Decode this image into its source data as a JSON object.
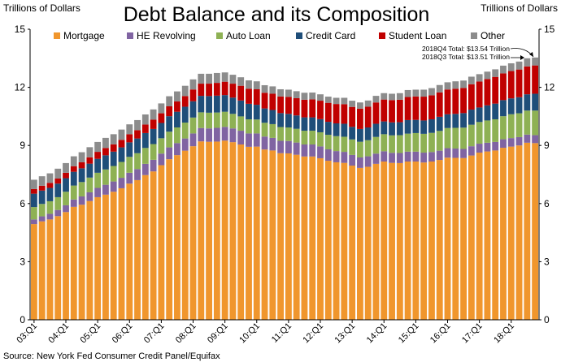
{
  "chart_data": {
    "type": "bar",
    "stacked": true,
    "title": "Debt Balance and its Composition",
    "ylabel_left": "Trillions of Dollars",
    "ylabel_right": "Trillions of Dollars",
    "ylim": [
      0,
      15
    ],
    "yticks": [
      0,
      3,
      6,
      9,
      12,
      15
    ],
    "grid": false,
    "legend_position": "top",
    "xtick_labels": [
      "03:Q1",
      "04:Q1",
      "05:Q1",
      "06:Q1",
      "07:Q1",
      "08:Q1",
      "09:Q1",
      "10:Q1",
      "11:Q1",
      "12:Q1",
      "13:Q1",
      "14:Q1",
      "15:Q1",
      "16:Q1",
      "17:Q1",
      "18:Q1"
    ],
    "categories": [
      "03:Q1",
      "03:Q2",
      "03:Q3",
      "03:Q4",
      "04:Q1",
      "04:Q2",
      "04:Q3",
      "04:Q4",
      "05:Q1",
      "05:Q2",
      "05:Q3",
      "05:Q4",
      "06:Q1",
      "06:Q2",
      "06:Q3",
      "06:Q4",
      "07:Q1",
      "07:Q2",
      "07:Q3",
      "07:Q4",
      "08:Q1",
      "08:Q2",
      "08:Q3",
      "08:Q4",
      "09:Q1",
      "09:Q2",
      "09:Q3",
      "09:Q4",
      "10:Q1",
      "10:Q2",
      "10:Q3",
      "10:Q4",
      "11:Q1",
      "11:Q2",
      "11:Q3",
      "11:Q4",
      "12:Q1",
      "12:Q2",
      "12:Q3",
      "12:Q4",
      "13:Q1",
      "13:Q2",
      "13:Q3",
      "13:Q4",
      "14:Q1",
      "14:Q2",
      "14:Q3",
      "14:Q4",
      "15:Q1",
      "15:Q2",
      "15:Q3",
      "15:Q4",
      "16:Q1",
      "16:Q2",
      "16:Q3",
      "16:Q4",
      "17:Q1",
      "17:Q2",
      "17:Q3",
      "17:Q4",
      "18:Q1",
      "18:Q2",
      "18:Q3",
      "18:Q4"
    ],
    "series": [
      {
        "name": "Mortgage",
        "color": "#F0962D",
        "values": [
          4.94,
          5.08,
          5.18,
          5.35,
          5.56,
          5.83,
          5.94,
          6.13,
          6.33,
          6.46,
          6.61,
          6.79,
          7.03,
          7.21,
          7.47,
          7.66,
          7.98,
          8.29,
          8.5,
          8.73,
          8.96,
          9.21,
          9.19,
          9.2,
          9.25,
          9.17,
          9.05,
          8.93,
          8.94,
          8.79,
          8.74,
          8.6,
          8.59,
          8.52,
          8.43,
          8.43,
          8.34,
          8.21,
          8.13,
          8.1,
          7.96,
          7.84,
          7.9,
          8.05,
          8.17,
          8.1,
          8.09,
          8.17,
          8.17,
          8.12,
          8.17,
          8.25,
          8.37,
          8.36,
          8.35,
          8.48,
          8.63,
          8.69,
          8.74,
          8.88,
          8.94,
          9.0,
          9.14,
          9.12
        ]
      },
      {
        "name": "HE Revolving",
        "color": "#8064A2",
        "values": [
          0.24,
          0.26,
          0.29,
          0.32,
          0.35,
          0.38,
          0.43,
          0.45,
          0.48,
          0.51,
          0.53,
          0.54,
          0.56,
          0.57,
          0.58,
          0.6,
          0.6,
          0.61,
          0.62,
          0.63,
          0.66,
          0.69,
          0.69,
          0.71,
          0.71,
          0.71,
          0.71,
          0.69,
          0.68,
          0.67,
          0.65,
          0.64,
          0.64,
          0.63,
          0.62,
          0.62,
          0.61,
          0.59,
          0.58,
          0.57,
          0.55,
          0.54,
          0.54,
          0.53,
          0.53,
          0.52,
          0.52,
          0.51,
          0.51,
          0.51,
          0.49,
          0.48,
          0.49,
          0.48,
          0.47,
          0.48,
          0.46,
          0.45,
          0.44,
          0.44,
          0.44,
          0.43,
          0.42,
          0.41
        ]
      },
      {
        "name": "Auto Loan",
        "color": "#8EB154",
        "values": [
          0.64,
          0.64,
          0.65,
          0.66,
          0.7,
          0.72,
          0.74,
          0.76,
          0.78,
          0.79,
          0.8,
          0.82,
          0.82,
          0.82,
          0.82,
          0.81,
          0.79,
          0.81,
          0.81,
          0.82,
          0.82,
          0.81,
          0.81,
          0.79,
          0.78,
          0.75,
          0.74,
          0.73,
          0.72,
          0.71,
          0.71,
          0.71,
          0.7,
          0.71,
          0.71,
          0.71,
          0.73,
          0.75,
          0.77,
          0.78,
          0.8,
          0.81,
          0.83,
          0.86,
          0.88,
          0.9,
          0.92,
          0.93,
          0.96,
          0.97,
          0.99,
          1.02,
          1.04,
          1.07,
          1.1,
          1.11,
          1.12,
          1.15,
          1.17,
          1.19,
          1.23,
          1.23,
          1.24,
          1.27
        ]
      },
      {
        "name": "Credit Card",
        "color": "#1F4E79",
        "values": [
          0.69,
          0.69,
          0.69,
          0.7,
          0.7,
          0.71,
          0.71,
          0.72,
          0.72,
          0.73,
          0.74,
          0.75,
          0.75,
          0.76,
          0.77,
          0.78,
          0.79,
          0.8,
          0.81,
          0.82,
          0.84,
          0.85,
          0.86,
          0.87,
          0.86,
          0.84,
          0.82,
          0.8,
          0.76,
          0.74,
          0.73,
          0.72,
          0.7,
          0.69,
          0.69,
          0.69,
          0.68,
          0.67,
          0.66,
          0.67,
          0.65,
          0.66,
          0.66,
          0.68,
          0.66,
          0.67,
          0.67,
          0.7,
          0.68,
          0.69,
          0.7,
          0.73,
          0.71,
          0.72,
          0.75,
          0.78,
          0.75,
          0.78,
          0.81,
          0.83,
          0.82,
          0.83,
          0.84,
          0.87
        ]
      },
      {
        "name": "Student Loan",
        "color": "#C00000",
        "values": [
          0.24,
          0.25,
          0.26,
          0.26,
          0.28,
          0.29,
          0.31,
          0.33,
          0.36,
          0.38,
          0.38,
          0.39,
          0.42,
          0.43,
          0.44,
          0.48,
          0.5,
          0.51,
          0.53,
          0.55,
          0.61,
          0.63,
          0.64,
          0.66,
          0.69,
          0.72,
          0.76,
          0.78,
          0.8,
          0.81,
          0.84,
          0.86,
          0.88,
          0.89,
          0.91,
          0.93,
          0.95,
          0.98,
          1.0,
          1.01,
          1.03,
          1.05,
          1.07,
          1.1,
          1.13,
          1.15,
          1.16,
          1.19,
          1.21,
          1.23,
          1.24,
          1.26,
          1.28,
          1.3,
          1.3,
          1.31,
          1.34,
          1.36,
          1.38,
          1.38,
          1.41,
          1.43,
          1.44,
          1.46
        ]
      },
      {
        "name": "Other",
        "color": "#8C8C8C",
        "values": [
          0.48,
          0.49,
          0.49,
          0.51,
          0.5,
          0.51,
          0.52,
          0.52,
          0.51,
          0.52,
          0.52,
          0.53,
          0.51,
          0.52,
          0.52,
          0.53,
          0.51,
          0.52,
          0.52,
          0.53,
          0.52,
          0.51,
          0.51,
          0.51,
          0.48,
          0.46,
          0.44,
          0.43,
          0.41,
          0.39,
          0.38,
          0.37,
          0.37,
          0.36,
          0.36,
          0.35,
          0.33,
          0.32,
          0.32,
          0.33,
          0.32,
          0.32,
          0.32,
          0.34,
          0.33,
          0.33,
          0.34,
          0.36,
          0.35,
          0.36,
          0.37,
          0.38,
          0.37,
          0.38,
          0.38,
          0.39,
          0.38,
          0.38,
          0.39,
          0.4,
          0.4,
          0.41,
          0.42,
          0.41
        ]
      }
    ],
    "annotations": [
      "2018Q4 Total: $13.54 Trillion",
      "2018Q3 Total: $13.51 Trillion"
    ],
    "source": "Source: New York Fed Consumer Credit Panel/Equifax"
  }
}
